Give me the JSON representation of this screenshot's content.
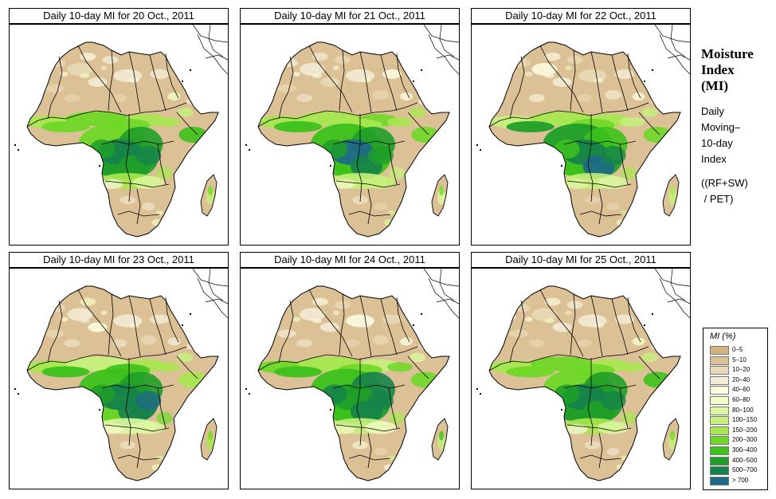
{
  "panels": [
    {
      "title": "Daily 10-day MI for  20 Oct., 2011"
    },
    {
      "title": "Daily 10-day MI for  21 Oct., 2011"
    },
    {
      "title": "Daily 10-day MI for  22 Oct., 2011"
    },
    {
      "title": "Daily 10-day MI for  23 Oct., 2011"
    },
    {
      "title": "Daily 10-day MI for  24 Oct., 2011"
    },
    {
      "title": "Daily 10-day MI for  25 Oct., 2011"
    }
  ],
  "sidebar": {
    "title_line1": "Moisture",
    "title_line2": "Index",
    "title_line3": "(MI)",
    "desc_line1": "Daily",
    "desc_line2": "Moving–",
    "desc_line3": "10-day",
    "desc_line4": "Index",
    "formula_line1": "((RF+SW)",
    "formula_line2": " / PET)"
  },
  "legend": {
    "title": "MI (%)",
    "items": [
      {
        "label": "0–5",
        "color": "#d2b27e"
      },
      {
        "label": "5–10",
        "color": "#dcc196"
      },
      {
        "label": "10–20",
        "color": "#e9d9b6"
      },
      {
        "label": "20–40",
        "color": "#f3ebd4"
      },
      {
        "label": "40–60",
        "color": "#fbfbe0"
      },
      {
        "label": "60–80",
        "color": "#f2fcc4"
      },
      {
        "label": "80–100",
        "color": "#ddf8a2"
      },
      {
        "label": "100–150",
        "color": "#c6f17c"
      },
      {
        "label": "150–200",
        "color": "#a7e84f"
      },
      {
        "label": "200–300",
        "color": "#6fd827"
      },
      {
        "label": "300–400",
        "color": "#3cc21b"
      },
      {
        "label": "400–500",
        "color": "#1f9f28"
      },
      {
        "label": "500–700",
        "color": "#16834a"
      },
      {
        "label": "> 700",
        "color": "#1d6987"
      }
    ]
  }
}
